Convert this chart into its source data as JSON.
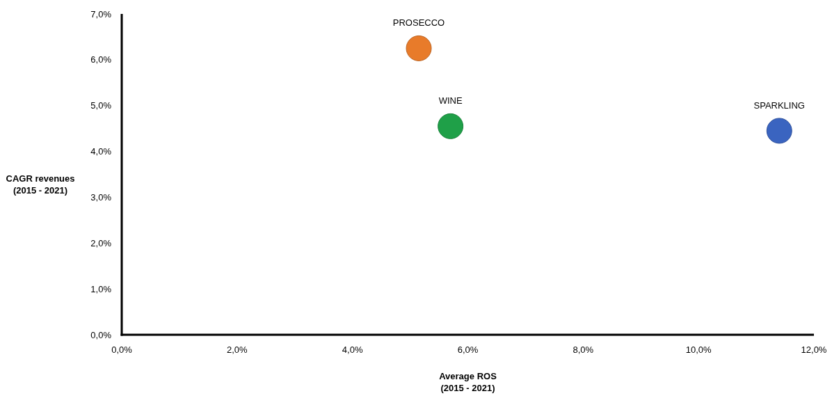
{
  "chart_data": {
    "type": "scatter",
    "xlabel": "Average ROS\n(2015 - 2021)",
    "ylabel": "CAGR revenues\n(2015 - 2021)",
    "xlim": [
      0,
      12
    ],
    "ylim": [
      0,
      7
    ],
    "xticks": [
      {
        "value": 0,
        "label": "0,0%"
      },
      {
        "value": 2,
        "label": "2,0%"
      },
      {
        "value": 4,
        "label": "4,0%"
      },
      {
        "value": 6,
        "label": "6,0%"
      },
      {
        "value": 8,
        "label": "8,0%"
      },
      {
        "value": 10,
        "label": "10,0%"
      },
      {
        "value": 12,
        "label": "12,0%"
      }
    ],
    "yticks": [
      {
        "value": 0,
        "label": "0,0%"
      },
      {
        "value": 1,
        "label": "1,0%"
      },
      {
        "value": 2,
        "label": "2,0%"
      },
      {
        "value": 3,
        "label": "3,0%"
      },
      {
        "value": 4,
        "label": "4,0%"
      },
      {
        "value": 5,
        "label": "5,0%"
      },
      {
        "value": 6,
        "label": "6,0%"
      },
      {
        "value": 7,
        "label": "7,0%"
      }
    ],
    "marker": "circle",
    "grid": false,
    "series": [
      {
        "name": "PROSECCO",
        "color": "#e87b2a",
        "x": [
          5.15
        ],
        "values": [
          6.25
        ]
      },
      {
        "name": "WINE",
        "color": "#1fa048",
        "x": [
          5.7
        ],
        "values": [
          4.55
        ]
      },
      {
        "name": "SPARKLING",
        "color": "#3a64c0",
        "x": [
          11.4
        ],
        "values": [
          4.45
        ]
      }
    ]
  }
}
